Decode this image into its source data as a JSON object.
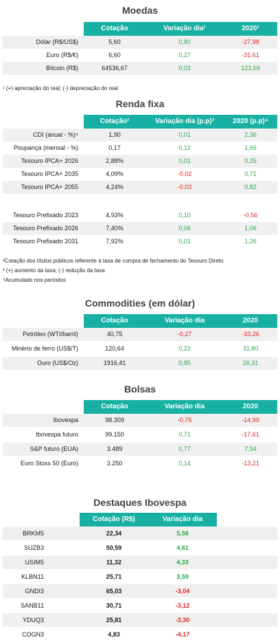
{
  "moedas": {
    "title": "Moedas",
    "headers": [
      "Cotação",
      "Variação dia¹",
      "2020¹"
    ],
    "rows": [
      {
        "label": "Dólar (R$/US$)",
        "cot": "5,60",
        "var": "0,80",
        "var_sign": "pos",
        "ytd": "-27,98",
        "ytd_sign": "neg"
      },
      {
        "label": "Euro (R$/€)",
        "cot": "6,60",
        "var": "0,27",
        "var_sign": "pos",
        "ytd": "-31,61",
        "ytd_sign": "neg"
      },
      {
        "label": "Bitcoin (R$)",
        "cot": "64536,67",
        "var": "0,03",
        "var_sign": "pos",
        "ytd": "123,69",
        "ytd_sign": "pos"
      }
    ],
    "footnote": "¹ (+) apreciação do real; (-) depreciação do real"
  },
  "renda_fixa": {
    "title": "Renda fixa",
    "headers": [
      "Cotação²",
      "Variação dia (p.p)³",
      "2020 (p.p)⁴"
    ],
    "rows": [
      {
        "label": "CDI (anual - %)⁴",
        "cot": "1,90",
        "var": "0,01",
        "var_sign": "pos",
        "ytd": "2,36",
        "ytd_sign": "pos"
      },
      {
        "label": "Poupança (mensal - %)",
        "cot": "0,17",
        "var": "0,12",
        "var_sign": "pos",
        "ytd": "1,66",
        "ytd_sign": "pos"
      },
      {
        "label": "Tesouro IPCA+ 2026",
        "cot": "2,88%",
        "var": "0,01",
        "var_sign": "pos",
        "ytd": "0,25",
        "ytd_sign": "pos"
      },
      {
        "label": "Tesouro IPCA+ 2035",
        "cot": "4,09%",
        "var": "-0,02",
        "var_sign": "neg",
        "ytd": "0,71",
        "ytd_sign": "pos"
      },
      {
        "label": "Tesouro IPCA+ 2055",
        "cot": "4,24%",
        "var": "-0,03",
        "var_sign": "neg",
        "ytd": "0,82",
        "ytd_sign": "pos"
      },
      {
        "label": "Tesouro Prefixado 2023",
        "cot": "4,93%",
        "var": "0,10",
        "var_sign": "pos",
        "ytd": "-0,56",
        "ytd_sign": "neg"
      },
      {
        "label": "Tesouro Prefixado 2026",
        "cot": "7,40%",
        "var": "0,06",
        "var_sign": "pos",
        "ytd": "1,06",
        "ytd_sign": "pos"
      },
      {
        "label": "Tesouro Prefixado 2031",
        "cot": "7,92%",
        "var": "0,01",
        "var_sign": "pos",
        "ytd": "1,26",
        "ytd_sign": "pos"
      }
    ],
    "footnotes": [
      "²Cotação dos títulos públicos referente à taxa de compra de fechamento do Tesouro Direto",
      "³ (+) aumento da taxa; (-) redução da taxa",
      "⁴Acumulado nos períodos"
    ]
  },
  "commodities": {
    "title": "Commodities (em dólar)",
    "headers": [
      "Cotação",
      "Variação dia",
      "2020"
    ],
    "rows": [
      {
        "label": "Petróleo (WTI/barril)",
        "cot": "40,75",
        "var": "-0,27",
        "var_sign": "neg",
        "ytd": "-33,26",
        "ytd_sign": "neg"
      },
      {
        "label": "Minério de ferro (US$/T)",
        "cot": "120,64",
        "var": "0,22",
        "var_sign": "pos",
        "ytd": "31,80",
        "ytd_sign": "pos"
      },
      {
        "label": "Ouro (US$/Oz)",
        "cot": "1916,41",
        "var": "0,85",
        "var_sign": "pos",
        "ytd": "26,31",
        "ytd_sign": "pos"
      }
    ]
  },
  "bolsas": {
    "title": "Bolsas",
    "headers": [
      "Cotação",
      "Variação dia",
      "2020"
    ],
    "rows": [
      {
        "label": "Ibovespa",
        "cot": "98.309",
        "var": "-0,75",
        "var_sign": "neg",
        "ytd": "-14,99",
        "ytd_sign": "neg"
      },
      {
        "label": "Ibovespa futuro",
        "cot": "99.150",
        "var": "0,71",
        "var_sign": "pos",
        "ytd": "-17,61",
        "ytd_sign": "neg"
      },
      {
        "label": "S&P futuro (EUA)",
        "cot": "3.489",
        "var": "0,77",
        "var_sign": "pos",
        "ytd": "7,94",
        "ytd_sign": "pos"
      },
      {
        "label": "Euro Stoxx 50 (Euro)",
        "cot": "3.250",
        "var": "0,14",
        "var_sign": "pos",
        "ytd": "-13,21",
        "ytd_sign": "neg"
      }
    ]
  },
  "destaques": {
    "title": "Destaques Ibovespa",
    "headers": [
      "Cotação (R$)",
      "Variação dia"
    ],
    "rows": [
      {
        "label": "BRKM5",
        "cot": "22,34",
        "var": "5,58",
        "var_sign": "pos"
      },
      {
        "label": "SUZB3",
        "cot": "50,59",
        "var": "4,61",
        "var_sign": "pos"
      },
      {
        "label": "USIM5",
        "cot": "11,32",
        "var": "4,33",
        "var_sign": "pos"
      },
      {
        "label": "KLBN11",
        "cot": "25,71",
        "var": "3,59",
        "var_sign": "pos"
      },
      {
        "label": "GNDI3",
        "cot": "65,03",
        "var": "-3,04",
        "var_sign": "neg"
      },
      {
        "label": "SANB11",
        "cot": "30,71",
        "var": "-3,12",
        "var_sign": "neg"
      },
      {
        "label": "YDUQ3",
        "cot": "25,81",
        "var": "-3,30",
        "var_sign": "neg"
      },
      {
        "label": "COGN3",
        "cot": "4,83",
        "var": "-4,17",
        "var_sign": "neg"
      }
    ]
  },
  "colors": {
    "header_bg": "#17b0a3",
    "positive": "#2ea84a",
    "negative": "#e02424",
    "row_shade": "#f0f0f0"
  }
}
